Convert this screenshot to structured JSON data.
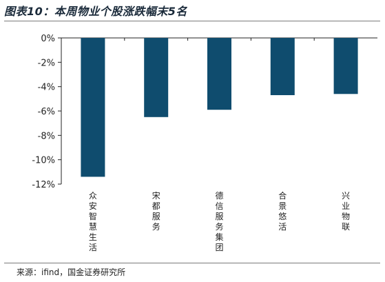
{
  "title": "图表10：本周物业个股涨跌幅末5名",
  "source": "来源：ifind，国金证券研究所",
  "chart_data": {
    "type": "bar",
    "categories": [
      "众安智慧生活",
      "宋都服务",
      "德信服务集团",
      "合景悠活",
      "兴业物联"
    ],
    "values": [
      -11.4,
      -6.5,
      -5.9,
      -4.7,
      -4.6
    ],
    "yticks": [
      "0%",
      "-2%",
      "-4%",
      "-6%",
      "-8%",
      "-10%",
      "-12%"
    ],
    "ylim": [
      -12,
      0
    ],
    "bar_color": "#0f4c6e"
  }
}
